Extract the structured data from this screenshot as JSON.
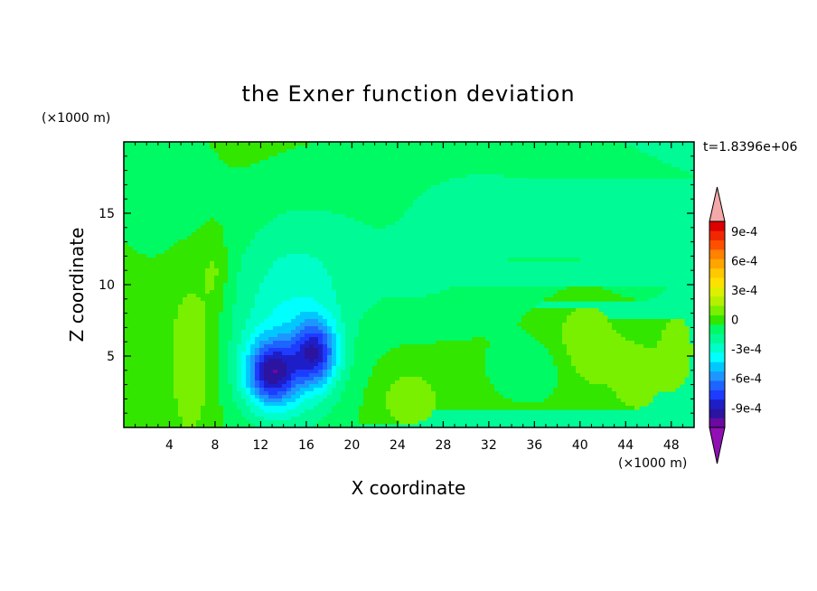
{
  "chart_data": {
    "type": "heatmap",
    "title": "the Exner function deviation",
    "xlabel": "X coordinate",
    "ylabel": "Z coordinate",
    "x_unit": "(×1000 m)",
    "y_unit": "(×1000 m)",
    "time_label": "t=1.8396e+06",
    "xlim": [
      0,
      50
    ],
    "ylim": [
      0,
      20
    ],
    "x_ticks": [
      4,
      8,
      12,
      16,
      20,
      24,
      28,
      32,
      36,
      40,
      44,
      48
    ],
    "y_ticks": [
      5,
      10,
      15
    ],
    "colorbar": {
      "levels": [
        -0.0011,
        -0.001,
        -0.0009,
        -0.0008,
        -0.0007,
        -0.0006,
        -0.0005,
        -0.0004,
        -0.0003,
        -0.0002,
        -0.0001,
        0,
        0.0001,
        0.0002,
        0.0003,
        0.0004,
        0.0005,
        0.0006,
        0.0007,
        0.0008,
        0.0009,
        0.001
      ],
      "labels": [
        "9e-4",
        "6e-4",
        "3e-4",
        "0",
        "-3e-4",
        "-6e-4",
        "-9e-4"
      ],
      "label_values": [
        0.0009,
        0.0006,
        0.0003,
        0,
        -0.0003,
        -0.0006,
        -0.0009
      ],
      "colors": [
        "#6a0aa0",
        "#2a14a0",
        "#1e1ec8",
        "#1e3cff",
        "#1e64ff",
        "#1e96ff",
        "#00c8ff",
        "#00ffff",
        "#00ffc8",
        "#00fa96",
        "#00fa64",
        "#32e600",
        "#78f000",
        "#b4f000",
        "#dcf000",
        "#ffe100",
        "#ffc800",
        "#ffa500",
        "#ff8200",
        "#ff5000",
        "#f02800",
        "#dc0000"
      ],
      "below_color": "#9010b4",
      "above_color": "#f4a8a8"
    },
    "field": {
      "background": 3e-05,
      "features": [
        {
          "x": 13,
          "z": 3.8,
          "sx": 1.6,
          "sz": 1.6,
          "amp": -0.00075
        },
        {
          "x": 16.8,
          "z": 5.2,
          "sx": 1.3,
          "sz": 1.6,
          "amp": -0.00065
        },
        {
          "x": 14.5,
          "z": 5.5,
          "sx": 3.6,
          "sz": 4.2,
          "amp": -0.00032
        },
        {
          "x": 15,
          "z": 12,
          "sx": 4.5,
          "sz": 3.5,
          "amp": -0.00012
        },
        {
          "x": 31,
          "z": 16,
          "sx": 9,
          "sz": 3.5,
          "amp": -0.00014
        },
        {
          "x": 3,
          "z": 17,
          "sx": 3,
          "sz": 3,
          "amp": -0.00012
        },
        {
          "x": 44,
          "z": 13,
          "sx": 7,
          "sz": 2.5,
          "amp": -0.00013
        },
        {
          "x": 26,
          "z": 10,
          "sx": 5,
          "sz": 2.5,
          "amp": -0.00011
        },
        {
          "x": 6,
          "z": 5,
          "sx": 1.5,
          "sz": 4.5,
          "amp": 0.00015
        },
        {
          "x": 8,
          "z": 11,
          "sx": 0.8,
          "sz": 2,
          "amp": 0.00012
        },
        {
          "x": 25,
          "z": 2,
          "sx": 2,
          "sz": 1.5,
          "amp": 0.00014
        },
        {
          "x": 40.5,
          "z": 6,
          "sx": 2,
          "sz": 2.5,
          "amp": 0.00016
        },
        {
          "x": 45,
          "z": 3.5,
          "sx": 1.5,
          "sz": 2,
          "amp": 0.00012
        },
        {
          "x": 48.5,
          "z": 5.5,
          "sx": 1.2,
          "sz": 2.5,
          "amp": 0.00012
        },
        {
          "x": 36,
          "z": 4,
          "sx": 2.5,
          "sz": 1.5,
          "amp": -0.00011
        }
      ]
    }
  }
}
